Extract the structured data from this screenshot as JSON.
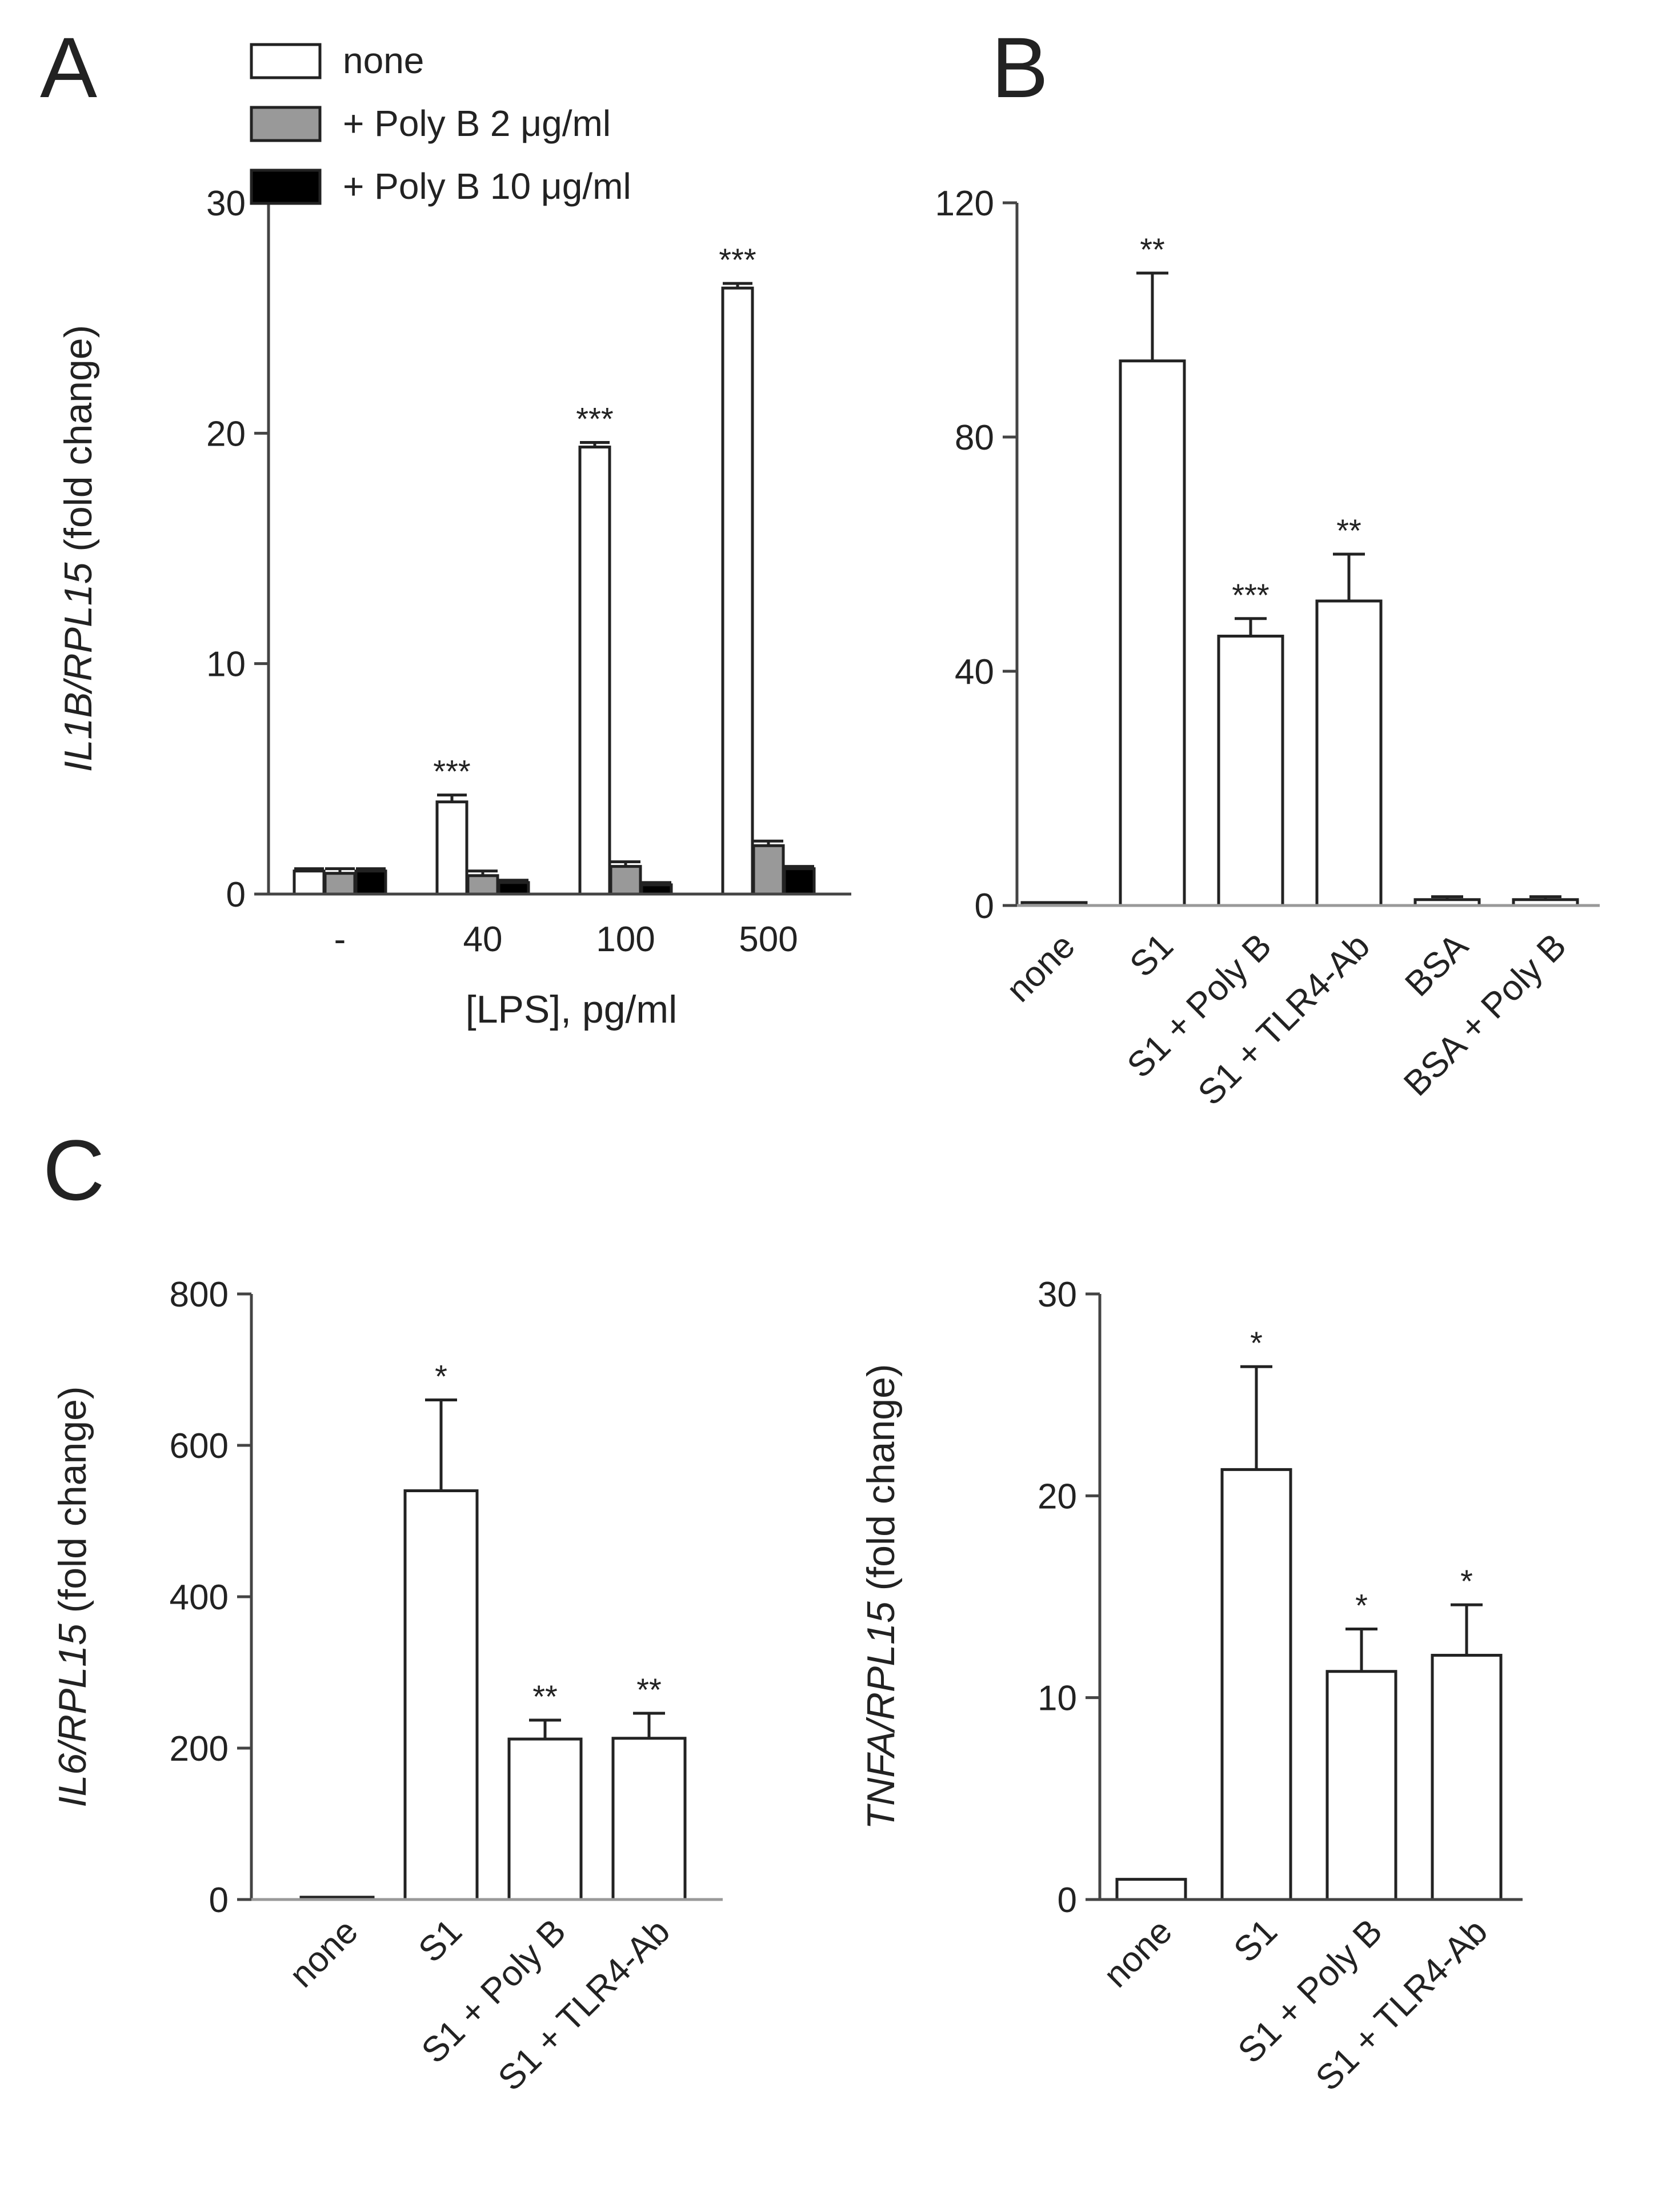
{
  "chart_data": [
    {
      "panel": "A",
      "type": "bar",
      "categories": [
        "-",
        "40",
        "100",
        "500"
      ],
      "xlabel": "[LPS], pg/ml",
      "ylabel_italic": "IL1B/RPL15",
      "ylabel_rest": " (fold change)",
      "ylim": [
        0,
        30
      ],
      "yticks": [
        0,
        10,
        20,
        30
      ],
      "series": [
        {
          "name": "none",
          "color": "#ffffff",
          "values": [
            1.0,
            4.0,
            19.4,
            26.3
          ],
          "errors": [
            0.1,
            0.3,
            0.2,
            0.2
          ],
          "sig": [
            "",
            "***",
            "***",
            "***"
          ]
        },
        {
          "name": "+ Poly B 2 μg/ml",
          "color": "#999999",
          "values": [
            0.9,
            0.8,
            1.2,
            2.1
          ],
          "errors": [
            0.2,
            0.2,
            0.2,
            0.2
          ],
          "sig": [
            "",
            "",
            "",
            ""
          ]
        },
        {
          "name": "+ Poly B 10 μg/ml",
          "color": "#000000",
          "values": [
            1.0,
            0.5,
            0.4,
            1.1
          ],
          "errors": [
            0.1,
            0.1,
            0.1,
            0.1
          ],
          "sig": [
            "",
            "",
            "",
            ""
          ]
        }
      ]
    },
    {
      "panel": "B",
      "type": "bar",
      "categories": [
        "none",
        "S1",
        "S1 + Poly B",
        "S1 + TLR4-Ab",
        "BSA",
        "BSA + Poly B"
      ],
      "ylim": [
        0,
        120
      ],
      "yticks": [
        0,
        40,
        80,
        120
      ],
      "values": [
        0.5,
        93,
        46,
        52,
        1,
        1
      ],
      "errors": [
        0,
        15,
        3,
        8,
        0.5,
        0.5
      ],
      "sig": [
        "",
        "**",
        "***",
        "**",
        "",
        ""
      ]
    },
    {
      "panel": "C",
      "type": "bar",
      "categories": [
        "none",
        "S1",
        "S1 + Poly B",
        "S1 + TLR4-Ab"
      ],
      "ylabel_italic": "IL6/RPL15",
      "ylabel_rest": " (fold change)",
      "ylim": [
        0,
        800
      ],
      "yticks": [
        0,
        200,
        400,
        600,
        800
      ],
      "values": [
        2,
        540,
        212,
        213
      ],
      "errors": [
        0,
        120,
        25,
        33
      ],
      "sig": [
        "",
        "*",
        "**",
        "**"
      ]
    },
    {
      "panel": "",
      "type": "bar",
      "categories": [
        "none",
        "S1",
        "S1 + Poly B",
        "S1 + TLR4-Ab"
      ],
      "ylabel_italic": "TNFA/RPL15",
      "ylabel_rest": " (fold change)",
      "ylim": [
        0,
        30
      ],
      "yticks": [
        0,
        10,
        20,
        30
      ],
      "values": [
        1,
        21.3,
        11.3,
        12.1
      ],
      "errors": [
        0,
        5.1,
        2.1,
        2.5
      ],
      "sig": [
        "",
        "*",
        "*",
        "*"
      ]
    }
  ],
  "colors": {
    "axis": "#444444",
    "text": "#222222",
    "bar_outline": "#222222"
  }
}
